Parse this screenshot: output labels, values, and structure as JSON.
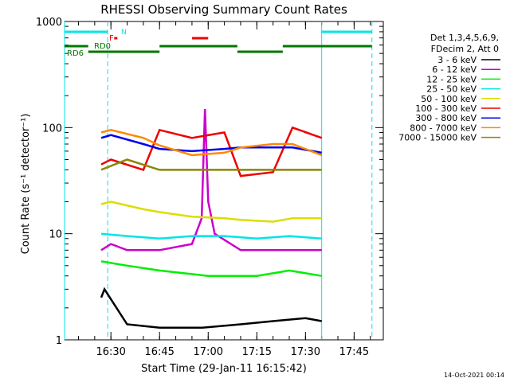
{
  "chart_data": {
    "type": "line",
    "title": "RHESSI Observing Summary Count Rates",
    "xlabel": "Start Time (29-Jan-11 16:15:42)",
    "ylabel": "Count Rate (s⁻¹ detector⁻¹)",
    "yscale": "log",
    "ylim": [
      1,
      1000
    ],
    "y_ticks": [
      {
        "value": 1,
        "label": "1"
      },
      {
        "value": 10,
        "label": "10"
      },
      {
        "value": 100,
        "label": "100"
      },
      {
        "value": 1000,
        "label": "1000"
      }
    ],
    "xlim": [
      "16:15:42",
      "17:54:00"
    ],
    "x_ticks": [
      {
        "value": "16:30",
        "label": "16:30"
      },
      {
        "value": "16:45",
        "label": "16:45"
      },
      {
        "value": "17:00",
        "label": "17:00"
      },
      {
        "value": "17:15",
        "label": "17:15"
      },
      {
        "value": "17:30",
        "label": "17:30"
      },
      {
        "value": "17:45",
        "label": "17:45"
      }
    ],
    "legend_header": [
      "Det 1,3,4,5,6,9,",
      "FDecim 2, Att 0"
    ],
    "legend_position": "right",
    "series": [
      {
        "name": "3 - 6 keV",
        "color": "#000000",
        "x": [
          "16:27",
          "16:28",
          "16:35",
          "16:45",
          "16:58",
          "17:10",
          "17:20",
          "17:30",
          "17:35"
        ],
        "values": [
          2.5,
          3,
          1.4,
          1.3,
          1.3,
          1.4,
          1.5,
          1.6,
          1.5
        ]
      },
      {
        "name": "6 - 12 keV",
        "color": "#cc00cc",
        "x": [
          "16:27",
          "16:30",
          "16:35",
          "16:45",
          "16:55",
          "16:58",
          "16:59",
          "17:00",
          "17:02",
          "17:10",
          "17:25",
          "17:35"
        ],
        "values": [
          7,
          8,
          7,
          7,
          8,
          14,
          150,
          20,
          10,
          7,
          7,
          7
        ]
      },
      {
        "name": "12 - 25 keV",
        "color": "#00ee00",
        "x": [
          "16:27",
          "16:35",
          "16:45",
          "17:00",
          "17:15",
          "17:25",
          "17:35"
        ],
        "values": [
          5.5,
          5,
          4.5,
          4,
          4,
          4.5,
          4
        ]
      },
      {
        "name": "25 - 50 keV",
        "color": "#00e5e5",
        "x": [
          "16:27",
          "16:35",
          "16:45",
          "16:55",
          "17:05",
          "17:15",
          "17:25",
          "17:35"
        ],
        "values": [
          10,
          9.5,
          9,
          9.5,
          9.5,
          9,
          9.5,
          9
        ]
      },
      {
        "name": "50 - 100 keV",
        "color": "#dddd00",
        "x": [
          "16:27",
          "16:30",
          "16:40",
          "16:45",
          "16:55",
          "17:05",
          "17:10",
          "17:20",
          "17:26",
          "17:35"
        ],
        "values": [
          19,
          20,
          17,
          16,
          14.5,
          14,
          13.5,
          13,
          14,
          14
        ]
      },
      {
        "name": "100 - 300 keV",
        "color": "#ee0000",
        "x": [
          "16:27",
          "16:30",
          "16:40",
          "16:45",
          "16:55",
          "17:05",
          "17:10",
          "17:20",
          "17:26",
          "17:35"
        ],
        "values": [
          45,
          50,
          40,
          95,
          80,
          90,
          35,
          38,
          100,
          80
        ]
      },
      {
        "name": "300 - 800 keV",
        "color": "#0000ee",
        "x": [
          "16:27",
          "16:30",
          "16:40",
          "16:45",
          "16:55",
          "17:05",
          "17:10",
          "17:20",
          "17:26",
          "17:35"
        ],
        "values": [
          80,
          85,
          70,
          63,
          60,
          63,
          65,
          65,
          65,
          58
        ]
      },
      {
        "name": "800 - 7000 keV",
        "color": "#ff8800",
        "x": [
          "16:27",
          "16:30",
          "16:40",
          "16:45",
          "16:55",
          "17:05",
          "17:10",
          "17:20",
          "17:26",
          "17:35"
        ],
        "values": [
          90,
          95,
          80,
          68,
          55,
          58,
          65,
          70,
          70,
          55
        ]
      },
      {
        "name": "7000 - 15000 keV",
        "color": "#888800",
        "x": [
          "16:27",
          "16:35",
          "16:45",
          "17:00",
          "17:10",
          "17:25",
          "17:35"
        ],
        "values": [
          40,
          50,
          40,
          40,
          40,
          40,
          40
        ]
      }
    ],
    "state_bars": [
      {
        "label": "N",
        "color": "#00e5e5"
      },
      {
        "label": "F",
        "color": "#ee0000"
      },
      {
        "label": "RD0",
        "color": "#007700"
      },
      {
        "label": "RD6",
        "color": "#007700"
      }
    ],
    "footer_date": "14-Oct-2021 00:14"
  }
}
